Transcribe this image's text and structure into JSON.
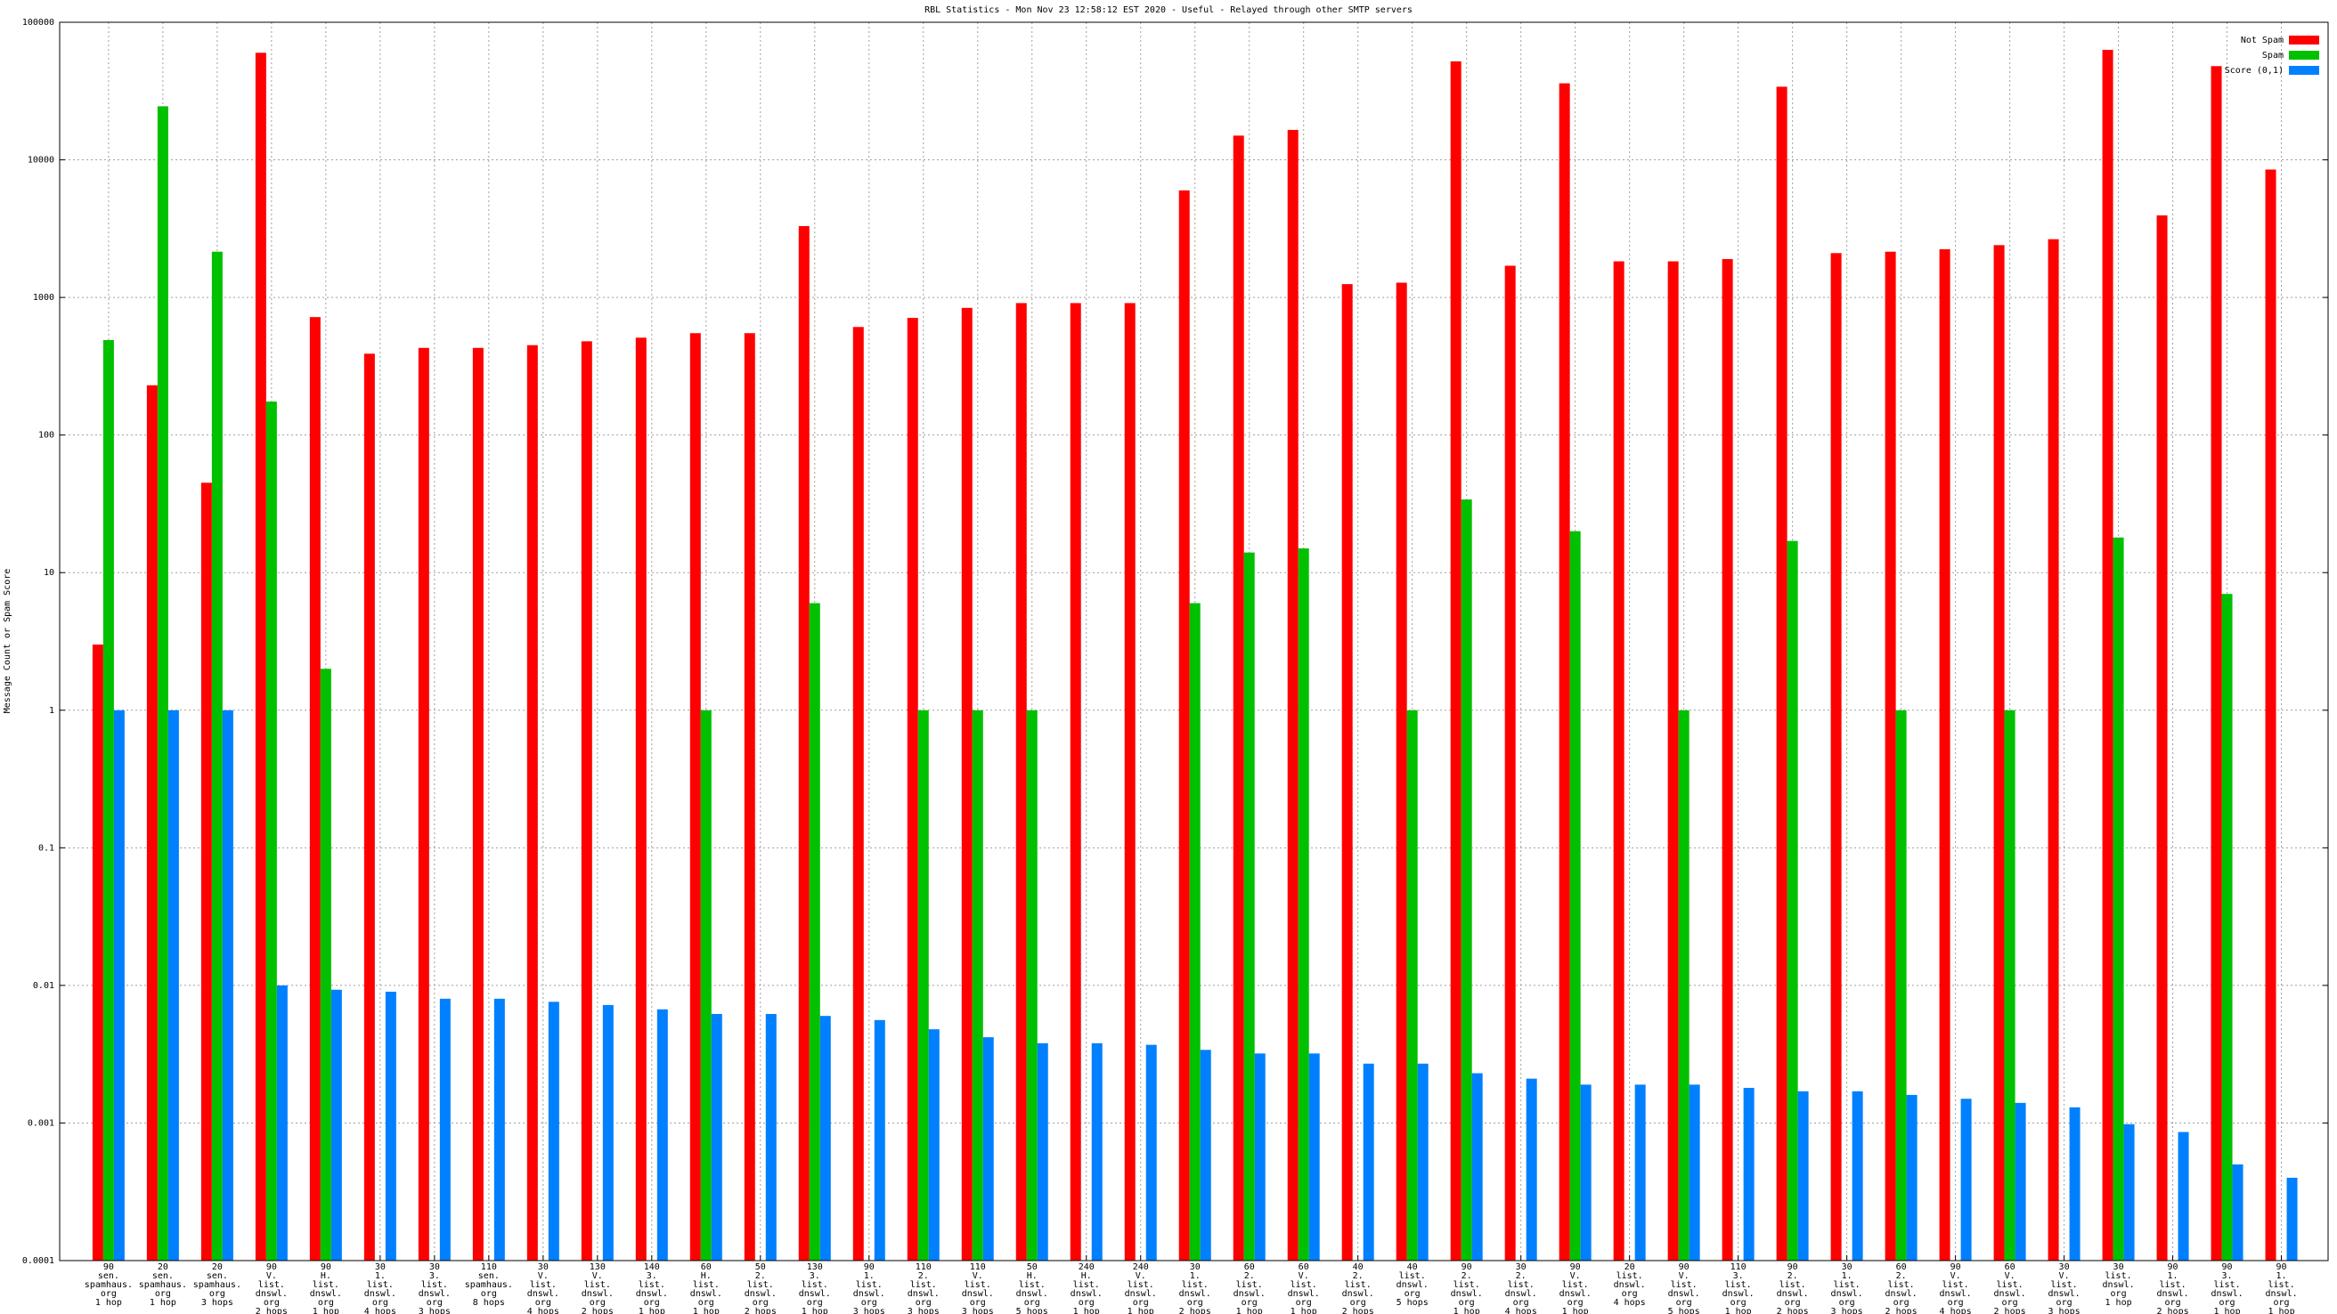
{
  "chart_data": {
    "type": "bar",
    "title": "RBL Statistics - Mon Nov 23 12:58:12 EST 2020 - Useful - Relayed through other SMTP servers",
    "y_label": "Message Count or Spam Score",
    "log_scale": true,
    "grid": true,
    "legend": "top-right",
    "ylim": [
      0.0001,
      100000
    ],
    "yticks": [
      0.0001,
      0.001,
      0.01,
      0.1,
      1,
      10,
      100,
      1000,
      10000,
      100000
    ],
    "categories": [
      [
        "90",
        "sen.",
        "spamhaus.",
        "org",
        "1 hop"
      ],
      [
        "20",
        "sen.",
        "spamhaus.",
        "org",
        "1 hop"
      ],
      [
        "20",
        "sen.",
        "spamhaus.",
        "org",
        "3 hops"
      ],
      [
        "90",
        "V.",
        "list.",
        "dnswl.",
        "org",
        "2 hops"
      ],
      [
        "90",
        "H.",
        "list.",
        "dnswl.",
        "org",
        "1 hop"
      ],
      [
        "30",
        "1.",
        "list.",
        "dnswl.",
        "org",
        "4 hops"
      ],
      [
        "30",
        "3.",
        "list.",
        "dnswl.",
        "org",
        "3 hops"
      ],
      [
        "110",
        "sen.",
        "spamhaus.",
        "org",
        "8 hops"
      ],
      [
        "30",
        "V.",
        "list.",
        "dnswl.",
        "org",
        "4 hops"
      ],
      [
        "130",
        "V.",
        "list.",
        "dnswl.",
        "org",
        "2 hops"
      ],
      [
        "140",
        "3.",
        "list.",
        "dnswl.",
        "org",
        "1 hop"
      ],
      [
        "60",
        "H.",
        "list.",
        "dnswl.",
        "org",
        "1 hop"
      ],
      [
        "50",
        "2.",
        "list.",
        "dnswl.",
        "org",
        "2 hops"
      ],
      [
        "130",
        "3.",
        "list.",
        "dnswl.",
        "org",
        "1 hop"
      ],
      [
        "90",
        "1.",
        "list.",
        "dnswl.",
        "org",
        "3 hops"
      ],
      [
        "110",
        "2.",
        "list.",
        "dnswl.",
        "org",
        "3 hops"
      ],
      [
        "110",
        "V.",
        "list.",
        "dnswl.",
        "org",
        "3 hops"
      ],
      [
        "50",
        "H.",
        "list.",
        "dnswl.",
        "org",
        "5 hops"
      ],
      [
        "240",
        "H.",
        "list.",
        "dnswl.",
        "org",
        "1 hop"
      ],
      [
        "240",
        "V.",
        "list.",
        "dnswl.",
        "org",
        "1 hop"
      ],
      [
        "30",
        "1.",
        "list.",
        "dnswl.",
        "org",
        "2 hops"
      ],
      [
        "60",
        "2.",
        "list.",
        "dnswl.",
        "org",
        "1 hop"
      ],
      [
        "60",
        "V.",
        "list.",
        "dnswl.",
        "org",
        "1 hop"
      ],
      [
        "40",
        "2.",
        "list.",
        "dnswl.",
        "org",
        "2 hops"
      ],
      [
        "40",
        "list.",
        "dnswl.",
        "org",
        "5 hops"
      ],
      [
        "90",
        "2.",
        "list.",
        "dnswl.",
        "org",
        "1 hop"
      ],
      [
        "30",
        "2.",
        "list.",
        "dnswl.",
        "org",
        "4 hops"
      ],
      [
        "90",
        "V.",
        "list.",
        "dnswl.",
        "org",
        "1 hop"
      ],
      [
        "20",
        "list.",
        "dnswl.",
        "org",
        "4 hops"
      ],
      [
        "90",
        "V.",
        "list.",
        "dnswl.",
        "org",
        "5 hops"
      ],
      [
        "110",
        "3.",
        "list.",
        "dnswl.",
        "org",
        "1 hop"
      ],
      [
        "90",
        "2.",
        "list.",
        "dnswl.",
        "org",
        "2 hops"
      ],
      [
        "30",
        "1.",
        "list.",
        "dnswl.",
        "org",
        "3 hops"
      ],
      [
        "60",
        "2.",
        "list.",
        "dnswl.",
        "org",
        "2 hops"
      ],
      [
        "90",
        "V.",
        "list.",
        "dnswl.",
        "org",
        "4 hops"
      ],
      [
        "60",
        "V.",
        "list.",
        "dnswl.",
        "org",
        "2 hops"
      ],
      [
        "30",
        "V.",
        "list.",
        "dnswl.",
        "org",
        "3 hops"
      ],
      [
        "30",
        "list.",
        "dnswl.",
        "org",
        "1 hop"
      ],
      [
        "90",
        "1.",
        "list.",
        "dnswl.",
        "org",
        "2 hops"
      ],
      [
        "90",
        "3.",
        "list.",
        "dnswl.",
        "org",
        "1 hop"
      ],
      [
        "90",
        "1.",
        "list.",
        "dnswl.",
        "org",
        "1 hop"
      ]
    ],
    "series": [
      {
        "name": "Not Spam",
        "color": "#ff0000",
        "values": [
          3,
          230,
          45,
          60000,
          720,
          390,
          430,
          430,
          450,
          480,
          510,
          550,
          550,
          3300,
          610,
          710,
          840,
          910,
          910,
          910,
          6000,
          15000,
          16500,
          1250,
          1280,
          52000,
          1700,
          36000,
          1830,
          1830,
          1900,
          34000,
          2100,
          2150,
          2240,
          2400,
          2650,
          63000,
          3950,
          48000,
          8500
        ]
      },
      {
        "name": "Spam",
        "color": "#00c000",
        "values": [
          490,
          24500,
          2150,
          175,
          2,
          null,
          null,
          null,
          null,
          null,
          null,
          1,
          null,
          6,
          null,
          1,
          1,
          1,
          null,
          null,
          6,
          14,
          15,
          null,
          1,
          34,
          null,
          20,
          null,
          1,
          null,
          17,
          null,
          1,
          null,
          1,
          null,
          18,
          null,
          7,
          null
        ]
      },
      {
        "name": "Score (0,1)",
        "color": "#0080ff",
        "values": [
          1,
          1,
          1,
          0.01,
          0.0093,
          0.009,
          0.008,
          0.008,
          0.0076,
          0.0072,
          0.0067,
          0.0062,
          0.0062,
          0.006,
          0.0056,
          0.0048,
          0.0042,
          0.0038,
          0.0038,
          0.0037,
          0.0034,
          0.0032,
          0.0032,
          0.0027,
          0.0027,
          0.0023,
          0.0021,
          0.0019,
          0.0019,
          0.0019,
          0.0018,
          0.0017,
          0.0017,
          0.0016,
          0.0015,
          0.0014,
          0.0013,
          0.00098,
          0.00086,
          0.0005,
          0.0004
        ]
      }
    ]
  }
}
